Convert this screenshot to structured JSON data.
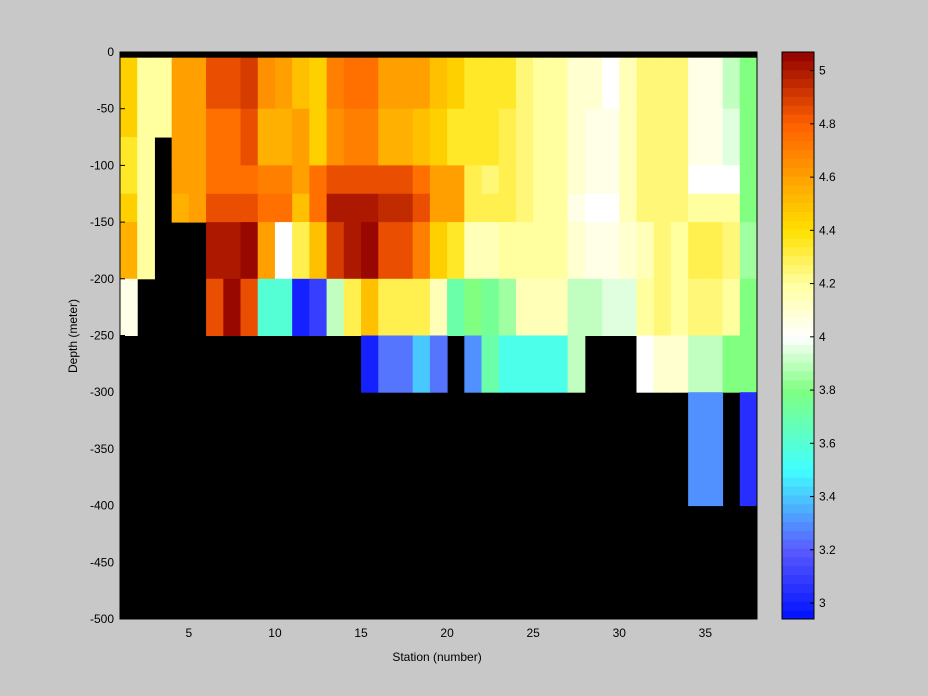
{
  "chart_data": {
    "type": "heatmap",
    "xlabel": "Station (number)",
    "ylabel": "Depth (meter)",
    "x": [
      1,
      2,
      3,
      4,
      5,
      6,
      7,
      8,
      9,
      10,
      11,
      12,
      13,
      14,
      15,
      16,
      17,
      18,
      19,
      20,
      21,
      22,
      23,
      24,
      25,
      26,
      27,
      28,
      29,
      30,
      31,
      32,
      33,
      34,
      35,
      36,
      37,
      38
    ],
    "y": [
      -5,
      -25,
      -50,
      -75,
      -100,
      -125,
      -150,
      -175,
      -200,
      -225,
      -250,
      -300,
      -400
    ],
    "z": [
      [
        4.45,
        4.2,
        4.2,
        4.6,
        4.6,
        4.85,
        4.85,
        4.9,
        4.65,
        4.6,
        4.5,
        4.45,
        4.7,
        4.75,
        4.75,
        4.6,
        4.6,
        4.6,
        4.5,
        4.45,
        4.35,
        4.35,
        4.35,
        4.25,
        4.2,
        4.2,
        4.1,
        4.1,
        4.0,
        4.15,
        4.25,
        4.25,
        4.25,
        4.05,
        4.05,
        3.9,
        3.8
      ],
      [
        4.45,
        4.2,
        4.2,
        4.6,
        4.6,
        4.85,
        4.85,
        4.9,
        4.65,
        4.6,
        4.5,
        4.45,
        4.7,
        4.75,
        4.75,
        4.6,
        4.6,
        4.6,
        4.5,
        4.45,
        4.35,
        4.35,
        4.35,
        4.25,
        4.2,
        4.2,
        4.1,
        4.1,
        4.0,
        4.15,
        4.25,
        4.25,
        4.25,
        4.05,
        4.05,
        3.9,
        3.8
      ],
      [
        4.45,
        4.2,
        4.2,
        4.6,
        4.6,
        4.75,
        4.75,
        4.85,
        4.55,
        4.55,
        4.6,
        4.45,
        4.65,
        4.7,
        4.7,
        4.55,
        4.55,
        4.5,
        4.45,
        4.35,
        4.35,
        4.35,
        4.3,
        4.25,
        4.2,
        4.2,
        4.1,
        4.05,
        4.05,
        4.15,
        4.25,
        4.25,
        4.25,
        4.05,
        4.05,
        3.95,
        3.8
      ],
      [
        4.35,
        4.2,
        null,
        4.6,
        4.6,
        4.75,
        4.75,
        4.85,
        4.55,
        4.55,
        4.6,
        4.45,
        4.65,
        4.7,
        4.7,
        4.55,
        4.55,
        4.5,
        4.45,
        4.35,
        4.35,
        4.35,
        4.3,
        4.25,
        4.2,
        4.2,
        4.1,
        4.05,
        4.05,
        4.15,
        4.25,
        4.25,
        4.25,
        4.05,
        4.05,
        3.95,
        3.8
      ],
      [
        4.35,
        4.2,
        null,
        4.6,
        4.6,
        4.75,
        4.75,
        4.75,
        4.7,
        4.7,
        4.6,
        4.75,
        4.85,
        4.85,
        4.85,
        4.85,
        4.85,
        4.75,
        4.6,
        4.6,
        4.3,
        4.25,
        4.3,
        4.25,
        4.2,
        4.2,
        4.1,
        4.05,
        4.05,
        4.15,
        4.25,
        4.25,
        4.25,
        4.0,
        4.0,
        4.0,
        3.8
      ],
      [
        4.45,
        4.2,
        null,
        4.55,
        4.6,
        4.85,
        4.85,
        4.85,
        4.75,
        4.75,
        4.5,
        4.75,
        5.0,
        5.0,
        5.0,
        4.95,
        4.95,
        4.85,
        4.6,
        4.6,
        4.3,
        4.3,
        4.3,
        4.25,
        4.2,
        4.2,
        4.05,
        4.0,
        4.0,
        4.15,
        4.25,
        4.25,
        4.25,
        4.2,
        4.2,
        4.2,
        3.8
      ],
      [
        4.55,
        4.2,
        null,
        null,
        null,
        5.0,
        5.0,
        5.05,
        4.6,
        4.0,
        4.3,
        4.5,
        4.9,
        5.0,
        5.05,
        4.85,
        4.85,
        4.7,
        4.45,
        4.35,
        4.15,
        4.15,
        4.2,
        4.2,
        4.2,
        4.2,
        4.1,
        4.05,
        4.05,
        4.1,
        4.15,
        4.25,
        4.2,
        4.3,
        4.3,
        4.25,
        3.85
      ],
      [
        4.55,
        4.2,
        null,
        null,
        null,
        5.0,
        5.0,
        5.05,
        4.6,
        4.0,
        4.3,
        4.5,
        4.9,
        5.0,
        5.05,
        4.85,
        4.85,
        4.7,
        4.45,
        4.35,
        4.15,
        4.15,
        4.2,
        4.2,
        4.2,
        4.2,
        4.1,
        4.05,
        4.05,
        4.1,
        4.15,
        4.25,
        4.2,
        4.3,
        4.3,
        4.25,
        3.85
      ],
      [
        4.05,
        null,
        null,
        null,
        null,
        4.85,
        5.05,
        4.85,
        3.6,
        3.6,
        3.0,
        3.1,
        3.9,
        4.3,
        4.5,
        4.3,
        4.3,
        4.3,
        4.15,
        3.7,
        3.8,
        3.75,
        3.85,
        4.15,
        4.15,
        4.15,
        3.9,
        3.9,
        3.95,
        3.95,
        4.2,
        4.25,
        4.2,
        4.25,
        4.25,
        4.2,
        3.8
      ],
      [
        4.05,
        null,
        null,
        null,
        null,
        4.85,
        5.05,
        4.85,
        3.6,
        3.6,
        3.0,
        3.1,
        3.9,
        4.3,
        4.5,
        4.3,
        4.3,
        4.3,
        4.15,
        3.7,
        3.8,
        3.75,
        3.85,
        4.15,
        4.15,
        4.15,
        3.9,
        3.9,
        3.95,
        3.95,
        4.2,
        4.25,
        4.2,
        4.25,
        4.25,
        4.2,
        3.8
      ],
      [
        null,
        null,
        null,
        null,
        null,
        null,
        null,
        null,
        null,
        null,
        null,
        null,
        null,
        null,
        3.0,
        3.25,
        3.25,
        3.4,
        3.25,
        null,
        3.3,
        3.7,
        3.55,
        3.55,
        3.55,
        3.55,
        3.9,
        null,
        null,
        null,
        4.0,
        4.1,
        4.1,
        3.9,
        3.9,
        3.8,
        3.8
      ],
      [
        null,
        null,
        null,
        null,
        null,
        null,
        null,
        null,
        null,
        null,
        null,
        null,
        null,
        null,
        null,
        null,
        null,
        null,
        null,
        null,
        null,
        null,
        null,
        null,
        null,
        null,
        null,
        null,
        null,
        null,
        null,
        null,
        null,
        3.3,
        3.3,
        null,
        3.05
      ]
    ],
    "xlim": [
      1,
      38
    ],
    "ylim": [
      -500,
      0
    ],
    "xticks": [
      5,
      10,
      15,
      20,
      25,
      30,
      35
    ],
    "yticks": [
      0,
      -50,
      -100,
      -150,
      -200,
      -250,
      -300,
      -350,
      -400,
      -450,
      -500
    ],
    "clim": [
      2.94,
      5.07
    ],
    "cticks": [
      3,
      3.2,
      3.4,
      3.6,
      3.8,
      4,
      4.2,
      4.4,
      4.6,
      4.8,
      5
    ],
    "colormap": [
      [
        2.94,
        "#0010ff"
      ],
      [
        3.2,
        "#5a5aff"
      ],
      [
        3.5,
        "#40ffff"
      ],
      [
        3.8,
        "#80ff80"
      ],
      [
        4.0,
        "#ffffff"
      ],
      [
        4.2,
        "#ffffa0"
      ],
      [
        4.4,
        "#ffe000"
      ],
      [
        4.6,
        "#ffa000"
      ],
      [
        4.8,
        "#ff6000"
      ],
      [
        5.07,
        "#900000"
      ]
    ],
    "missing_color": "#000000"
  }
}
